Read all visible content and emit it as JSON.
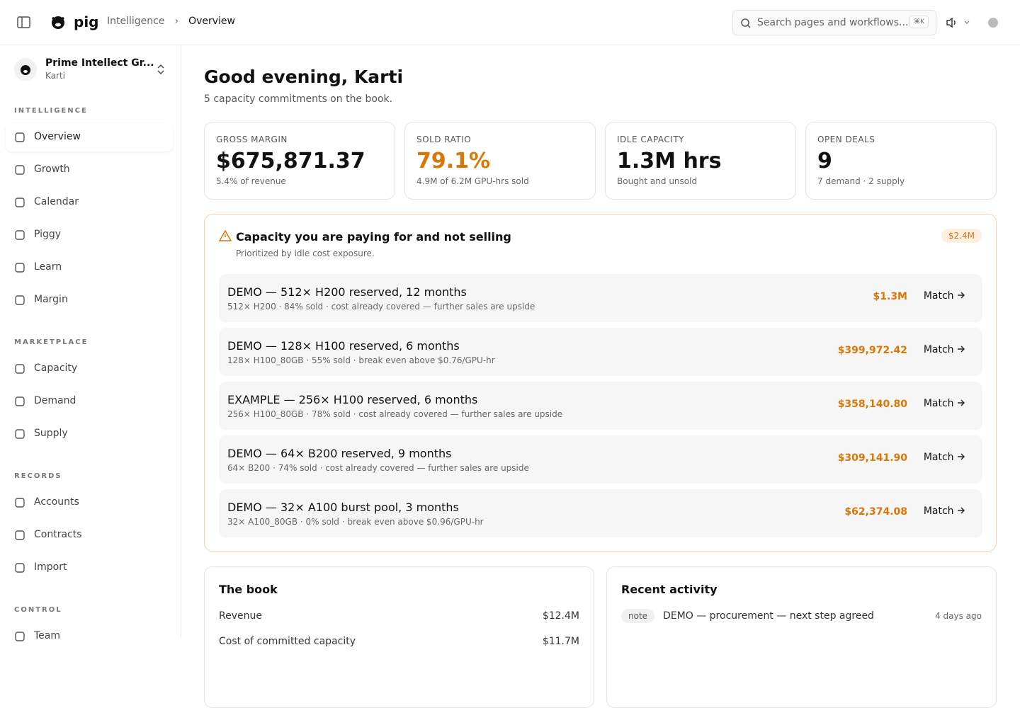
{
  "header": {
    "brand": "pig",
    "breadcrumb": [
      "Intelligence",
      "Overview"
    ],
    "search": "Search pages and workflows...",
    "shortcut": "⌘K"
  },
  "sidebar": {
    "org": "Prime Intellect Gr...",
    "user": "Karti",
    "sections": [
      {
        "label": "INTELLIGENCE",
        "items": [
          "Overview",
          "Growth",
          "Calendar",
          "Piggy",
          "Learn",
          "Margin"
        ]
      },
      {
        "label": "MARKETPLACE",
        "items": [
          "Capacity",
          "Demand",
          "Supply"
        ]
      },
      {
        "label": "RECORDS",
        "items": [
          "Accounts",
          "Contracts",
          "Import"
        ]
      },
      {
        "label": "CONTROL",
        "items": [
          "Team"
        ]
      }
    ]
  },
  "main": {
    "greeting": "Good evening, Karti",
    "subtitle": "5 capacity commitments on the book.",
    "stats": [
      {
        "label": "GROSS MARGIN",
        "value": "$675,871.37",
        "note": "5.4% of revenue"
      },
      {
        "label": "SOLD RATIO",
        "value": "79.1%",
        "note": "4.9M of 6.2M GPU-hrs sold"
      },
      {
        "label": "IDLE CAPACITY",
        "value": "1.3M hrs",
        "note": "Bought and unsold"
      },
      {
        "label": "OPEN DEALS",
        "value": "9",
        "note": "7 demand · 2 supply"
      }
    ],
    "alert": {
      "title": "Capacity you are paying for and not selling",
      "subtitle": "Prioritized by idle cost exposure.",
      "badge": "$2.4M",
      "items": [
        {
          "title": "DEMO — 512× H200 reserved, 12 months",
          "detail": "512× H200 · 84% sold · cost already covered — further sales are upside",
          "amount": "$1.3M",
          "action": "Match"
        },
        {
          "title": "DEMO — 128× H100 reserved, 6 months",
          "detail": "128× H100_80GB · 55% sold · break even above $0.76/GPU-hr",
          "amount": "$399,972.42",
          "action": "Match"
        },
        {
          "title": "EXAMPLE — 256× H100 reserved, 6 months",
          "detail": "256× H100_80GB · 78% sold · cost already covered — further sales are upside",
          "amount": "$358,140.80",
          "action": "Match"
        },
        {
          "title": "DEMO — 64× B200 reserved, 9 months",
          "detail": "64× B200 · 74% sold · cost already covered — further sales are upside",
          "amount": "$309,141.90",
          "action": "Match"
        },
        {
          "title": "DEMO — 32× A100 burst pool, 3 months",
          "detail": "32× A100_80GB · 0% sold · break even above $0.96/GPU-hr",
          "amount": "$62,374.08",
          "action": "Match"
        }
      ]
    },
    "book": {
      "title": "The book",
      "rows": [
        [
          "Revenue",
          "$12.4M"
        ],
        [
          "Cost of committed capacity",
          "$11.7M"
        ]
      ]
    },
    "activity": {
      "title": "Recent activity",
      "items": [
        {
          "tag": "note",
          "text": "DEMO — procurement — next step agreed",
          "time": "4 days ago"
        }
      ]
    }
  }
}
